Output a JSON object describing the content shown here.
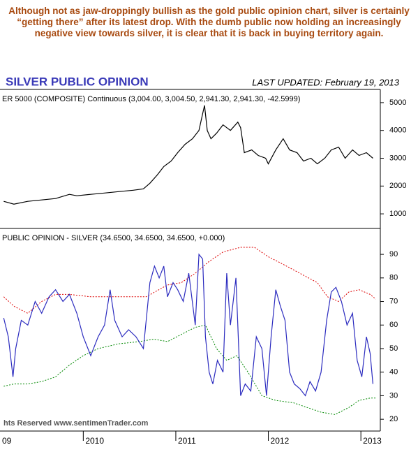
{
  "note": "Although not as jaw-droppingly bullish as the gold public opinion chart, silver is certainly “getting there” after its latest drop. With the dumb public now holding an increasingly negative view towards silver, it is clear that it is back in buying territory again.",
  "title": "SILVER PUBLIC OPINION",
  "updated": "LAST UPDATED:  February 19, 2013",
  "copyright": "hts Reserved  www.sentimenTrader.com",
  "chart_data": [
    {
      "type": "line",
      "label": "ER 5000 (COMPOSITE) Continuous (3,004.00, 3,004.50, 2,941.30, 2,941.30, -42.5999)",
      "xlim": [
        2009.1,
        2013.21
      ],
      "ylim": [
        475,
        5475
      ],
      "yticks": [
        1000,
        2000,
        3000,
        4000,
        5000
      ],
      "series": [
        {
          "color": "#000000",
          "dash": false,
          "x": [
            2009.14,
            2009.25,
            2009.4,
            2009.55,
            2009.7,
            2009.85,
            2009.93,
            2010.08,
            2010.23,
            2010.38,
            2010.54,
            2010.65,
            2010.72,
            2010.8,
            2010.87,
            2010.95,
            2011.02,
            2011.1,
            2011.18,
            2011.25,
            2011.29,
            2011.31,
            2011.34,
            2011.38,
            2011.44,
            2011.51,
            2011.59,
            2011.67,
            2011.7,
            2011.74,
            2011.82,
            2011.89,
            2011.97,
            2012.0,
            2012.08,
            2012.16,
            2012.23,
            2012.31,
            2012.38,
            2012.46,
            2012.53,
            2012.61,
            2012.68,
            2012.76,
            2012.83,
            2012.91,
            2012.98,
            2013.06,
            2013.13
          ],
          "values": [
            1450,
            1350,
            1450,
            1500,
            1550,
            1700,
            1650,
            1700,
            1750,
            1800,
            1850,
            1900,
            2100,
            2400,
            2700,
            2900,
            3200,
            3500,
            3700,
            4000,
            4600,
            4900,
            4000,
            3700,
            3900,
            4200,
            4000,
            4300,
            4100,
            3200,
            3300,
            3100,
            3000,
            2800,
            3300,
            3700,
            3300,
            3200,
            2900,
            3000,
            2800,
            3000,
            3300,
            3400,
            3000,
            3300,
            3100,
            3200,
            3000
          ]
        }
      ]
    },
    {
      "type": "line",
      "label": "PUBLIC OPINION - SILVER (34.6500, 34.6500, 34.6500, +0.000)",
      "xlim": [
        2009.1,
        2013.21
      ],
      "ylim": [
        15,
        101
      ],
      "yticks": [
        20,
        30,
        40,
        50,
        60,
        70,
        80,
        90
      ],
      "xticks": [
        {
          "value": 2009,
          "label": "09"
        },
        2010,
        2011,
        2012,
        2013
      ],
      "series": [
        {
          "color": "#dd0000",
          "dash": true,
          "x": [
            2009.14,
            2009.25,
            2009.4,
            2009.55,
            2009.7,
            2009.85,
            2010.08,
            2010.38,
            2010.68,
            2010.91,
            2011.06,
            2011.21,
            2011.36,
            2011.51,
            2011.7,
            2011.85,
            2012.0,
            2012.15,
            2012.34,
            2012.53,
            2012.64,
            2012.76,
            2012.87,
            2012.98,
            2013.1,
            2013.16
          ],
          "values": [
            72,
            68,
            65,
            70,
            73,
            73,
            72,
            72,
            72,
            77,
            78,
            82,
            87,
            91,
            93,
            93,
            89,
            86,
            82,
            78,
            72,
            70,
            74,
            75,
            73,
            71
          ]
        },
        {
          "color": "#008800",
          "dash": true,
          "x": [
            2009.14,
            2009.25,
            2009.4,
            2009.55,
            2009.7,
            2009.85,
            2010.0,
            2010.16,
            2010.38,
            2010.61,
            2010.76,
            2010.91,
            2011.06,
            2011.21,
            2011.32,
            2011.44,
            2011.55,
            2011.66,
            2011.78,
            2011.93,
            2012.08,
            2012.27,
            2012.42,
            2012.57,
            2012.72,
            2012.87,
            2012.98,
            2013.1,
            2013.16
          ],
          "values": [
            34,
            35,
            35,
            36,
            38,
            43,
            47,
            50,
            52,
            53,
            54,
            53,
            56,
            59,
            60,
            50,
            45,
            47,
            40,
            30,
            28,
            27,
            25,
            23,
            22,
            25,
            28,
            29,
            29
          ]
        },
        {
          "color": "#2b2bbf",
          "dash": false,
          "x": [
            2009.14,
            2009.19,
            2009.24,
            2009.27,
            2009.33,
            2009.4,
            2009.48,
            2009.55,
            2009.63,
            2009.7,
            2009.78,
            2009.85,
            2009.93,
            2010.0,
            2010.08,
            2010.16,
            2010.23,
            2010.29,
            2010.34,
            2010.42,
            2010.49,
            2010.57,
            2010.65,
            2010.72,
            2010.77,
            2010.82,
            2010.87,
            2010.91,
            2010.97,
            2011.02,
            2011.08,
            2011.14,
            2011.21,
            2011.25,
            2011.29,
            2011.32,
            2011.36,
            2011.4,
            2011.45,
            2011.51,
            2011.55,
            2011.59,
            2011.65,
            2011.7,
            2011.75,
            2011.81,
            2011.87,
            2011.93,
            2011.98,
            2012.03,
            2012.08,
            2012.13,
            2012.18,
            2012.23,
            2012.28,
            2012.34,
            2012.4,
            2012.45,
            2012.51,
            2012.57,
            2012.63,
            2012.68,
            2012.73,
            2012.79,
            2012.85,
            2012.91,
            2012.96,
            2013.01,
            2013.06,
            2013.1,
            2013.13
          ],
          "values": [
            63,
            55,
            38,
            50,
            62,
            60,
            70,
            65,
            72,
            75,
            70,
            73,
            65,
            55,
            47,
            55,
            60,
            75,
            62,
            55,
            58,
            55,
            50,
            78,
            85,
            80,
            85,
            72,
            78,
            75,
            70,
            82,
            60,
            90,
            88,
            55,
            40,
            35,
            45,
            40,
            82,
            60,
            80,
            30,
            35,
            32,
            55,
            50,
            30,
            55,
            75,
            68,
            62,
            40,
            35,
            33,
            30,
            36,
            32,
            40,
            62,
            74,
            76,
            70,
            60,
            65,
            45,
            38,
            55,
            48,
            35
          ]
        }
      ]
    }
  ]
}
